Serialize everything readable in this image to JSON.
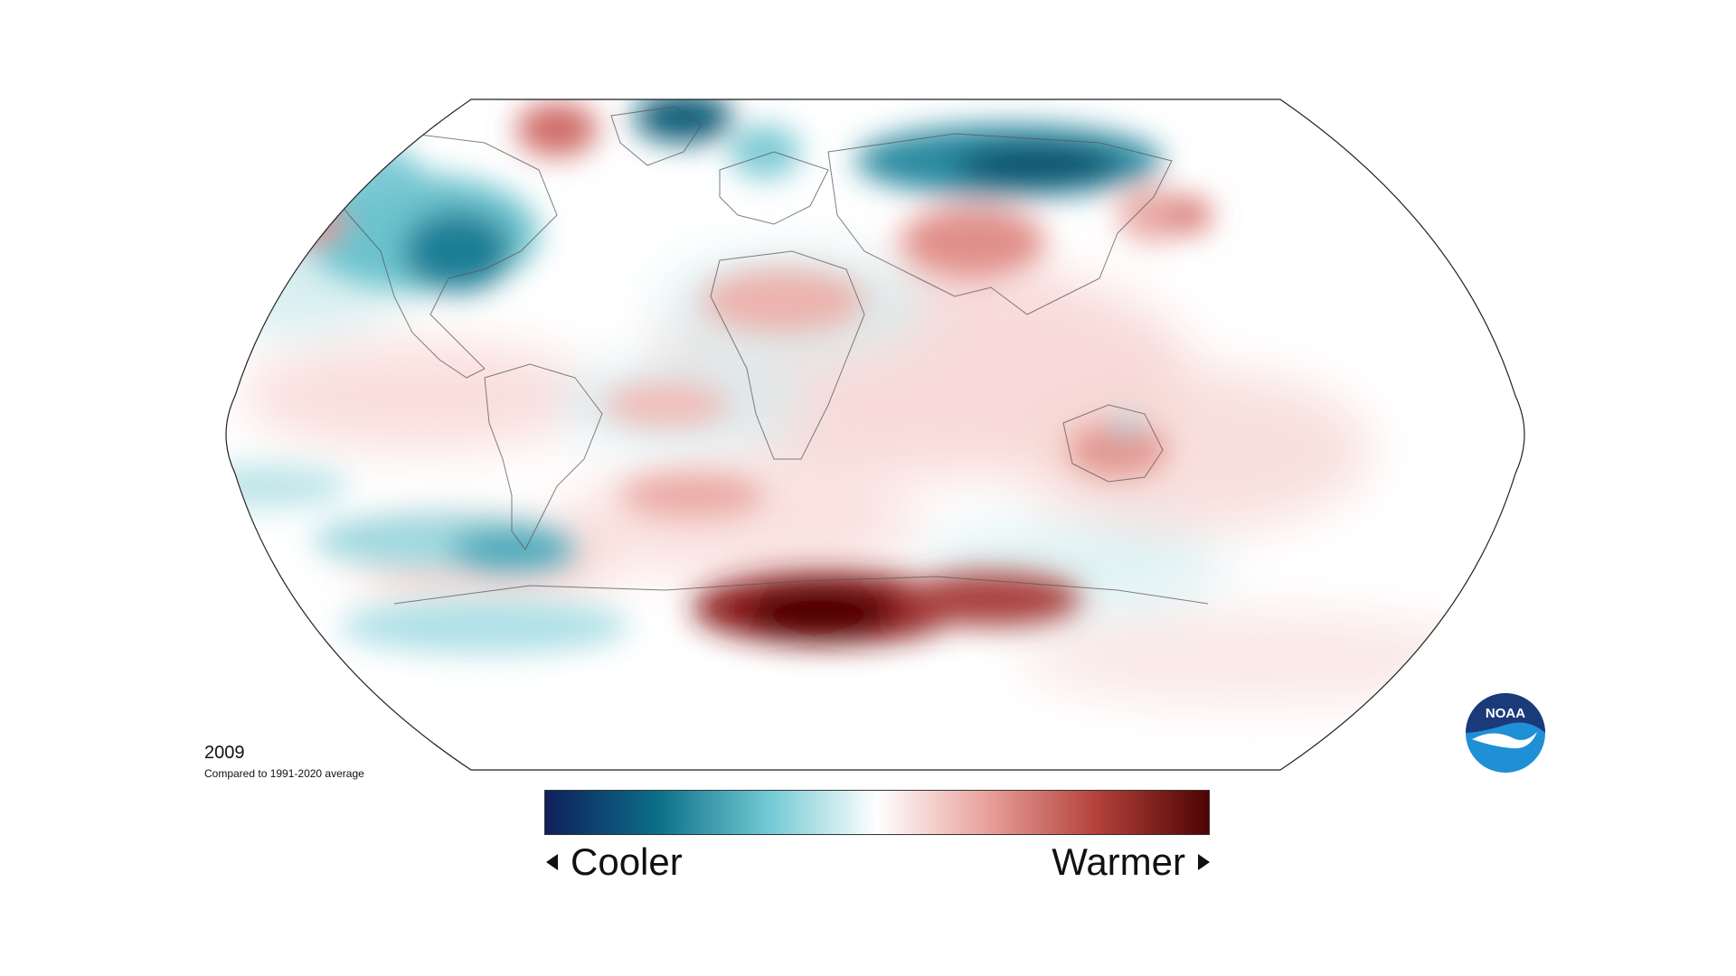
{
  "map": {
    "year": "2009",
    "baseline": "Compared to 1991-2020 average"
  },
  "legend": {
    "cooler_label": "Cooler",
    "warmer_label": "Warmer",
    "colors": [
      "#0f1f5c",
      "#0b6d86",
      "#6fc8d2",
      "#ffffff",
      "#e8a09a",
      "#b3403a",
      "#4d0404"
    ]
  },
  "logo": {
    "text": "NOAA",
    "primary_color": "#1a3a7a",
    "secondary_color": "#1f8fd6"
  },
  "colors": {
    "cool": "#0b6d86",
    "cool_deep": "#0a4d6a",
    "warm": "#c9585a",
    "warm_deep": "#5a0303"
  }
}
